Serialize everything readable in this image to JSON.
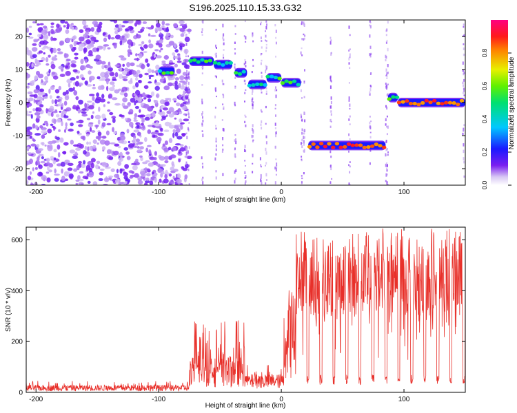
{
  "title": "S196.2025.110.15.33.G32",
  "chart_data": [
    {
      "type": "heatmap",
      "title": "S196.2025.110.15.33.G32",
      "xlabel": "Height of straight line (km)",
      "ylabel": "Frequency (Hz)",
      "xlim": [
        -208,
        150
      ],
      "ylim": [
        -25,
        25
      ],
      "xticks": [
        -200,
        -100,
        0,
        100
      ],
      "yticks": [
        -20,
        -10,
        0,
        10,
        20
      ],
      "colorbar": {
        "label": "Normalized spectral amplitude",
        "range": [
          0,
          1
        ],
        "ticks": [
          "0.0",
          "0.2",
          "0.4",
          "0.6",
          "0.8"
        ],
        "colormap": "rainbow (white-purple-blue-cyan-green-yellow-red-pink)"
      },
      "features": [
        {
          "name": "diffuse noise",
          "x_range": [
            -208,
            -75
          ],
          "freq_range": [
            -25,
            25
          ],
          "amplitude": "low (0.05-0.2)"
        },
        {
          "name": "segment",
          "x_range": [
            -100,
            -87
          ],
          "freq": 9.5
        },
        {
          "name": "segment",
          "x_range": [
            -75,
            -55
          ],
          "freq": 12.5
        },
        {
          "name": "segment",
          "x_range": [
            -55,
            -40
          ],
          "freq": 11.5
        },
        {
          "name": "segment",
          "x_range": [
            -38,
            -28
          ],
          "freq": 9.0
        },
        {
          "name": "segment",
          "x_range": [
            -27,
            -12
          ],
          "freq": 5.5
        },
        {
          "name": "segment",
          "x_range": [
            -12,
            0
          ],
          "freq": 7.5
        },
        {
          "name": "segment",
          "x_range": [
            0,
            16
          ],
          "freq": 6.0
        },
        {
          "name": "segment",
          "x_range": [
            22,
            85
          ],
          "freq": -13.0,
          "peak_amplitude": 0.9
        },
        {
          "name": "segment",
          "x_range": [
            87,
            95
          ],
          "freq": 1.5
        },
        {
          "name": "segment",
          "x_range": [
            95,
            150
          ],
          "freq": 0.0,
          "peak_amplitude": 0.9
        }
      ],
      "grid": false,
      "legend": "colorbar right"
    },
    {
      "type": "line",
      "xlabel": "Height of straight line (km)",
      "ylabel": "SNR (10 * v/v)",
      "xlim": [
        -208,
        150
      ],
      "ylim": [
        0,
        650
      ],
      "xticks": [
        -200,
        -100,
        0,
        100
      ],
      "yticks": [
        0,
        200,
        400,
        600
      ],
      "color": "#e8302a",
      "grid": false,
      "envelope": [
        {
          "x_range": [
            -208,
            -75
          ],
          "snr_min": 5,
          "snr_max": 45
        },
        {
          "x_range": [
            -75,
            -30
          ],
          "snr_min": 20,
          "snr_max": 290
        },
        {
          "x_range": [
            -30,
            2
          ],
          "snr_min": 15,
          "snr_max": 110
        },
        {
          "x_range": [
            2,
            12
          ],
          "snr_min": 50,
          "snr_max": 420
        },
        {
          "x_range": [
            12,
            150
          ],
          "snr_min": 30,
          "snr_max": 645
        }
      ]
    }
  ]
}
